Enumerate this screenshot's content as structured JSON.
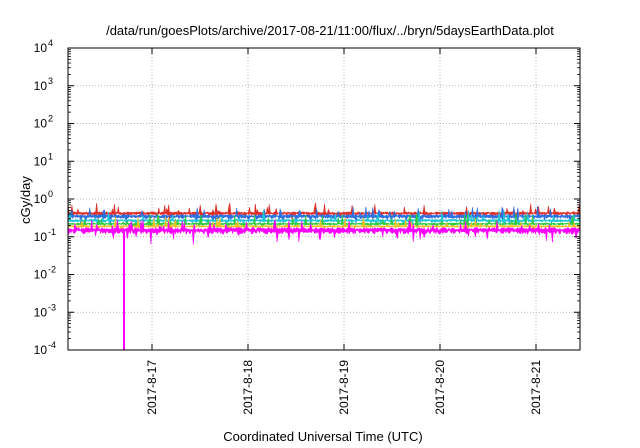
{
  "chart_data": {
    "type": "line",
    "title": "/data/run/goesPlots/archive/2017-08-21/11:00/flux/../bryn/5daysEarthData.plot",
    "xlabel": "Coordinated Universal Time (UTC)",
    "ylabel": "cGy/day",
    "y_scale": "log",
    "ylim": [
      0.0001,
      10000
    ],
    "y_ticks": [
      {
        "base": "10",
        "exp": "-4",
        "value": 0.0001
      },
      {
        "base": "10",
        "exp": "-3",
        "value": 0.001
      },
      {
        "base": "10",
        "exp": "-2",
        "value": 0.01
      },
      {
        "base": "10",
        "exp": "-1",
        "value": 0.1
      },
      {
        "base": "10",
        "exp": "0",
        "value": 1
      },
      {
        "base": "10",
        "exp": "1",
        "value": 10
      },
      {
        "base": "10",
        "exp": "2",
        "value": 100
      },
      {
        "base": "10",
        "exp": "3",
        "value": 1000
      },
      {
        "base": "10",
        "exp": "4",
        "value": 10000
      }
    ],
    "xlim": [
      "2017-08-16T03:00",
      "2017-08-21T11:00"
    ],
    "x_ticks": [
      {
        "label": "2017-8-17",
        "value": "2017-08-17T00:00"
      },
      {
        "label": "2017-8-18",
        "value": "2017-08-18T00:00"
      },
      {
        "label": "2017-8-19",
        "value": "2017-08-19T00:00"
      },
      {
        "label": "2017-8-20",
        "value": "2017-08-20T00:00"
      },
      {
        "label": "2017-8-21",
        "value": "2017-08-21T00:00"
      }
    ],
    "grid": true,
    "legend": "none",
    "series": [
      {
        "color": "#e0302a",
        "level": 0.42,
        "spread": 0.18
      },
      {
        "color": "#2f6fe0",
        "level": 0.35,
        "spread": 0.22
      },
      {
        "color": "#1ec8d6",
        "level": 0.27,
        "spread": 0.15
      },
      {
        "color": "#2ecc40",
        "level": 0.22,
        "spread": 0.12
      },
      {
        "color": "#f0c020",
        "level": 0.19,
        "spread": 0.1
      },
      {
        "color": "#ff00ff",
        "level": 0.15,
        "spread": 0.35,
        "dropout": {
          "at": "2017-08-16T17:00",
          "value": 0.0001
        }
      }
    ]
  }
}
